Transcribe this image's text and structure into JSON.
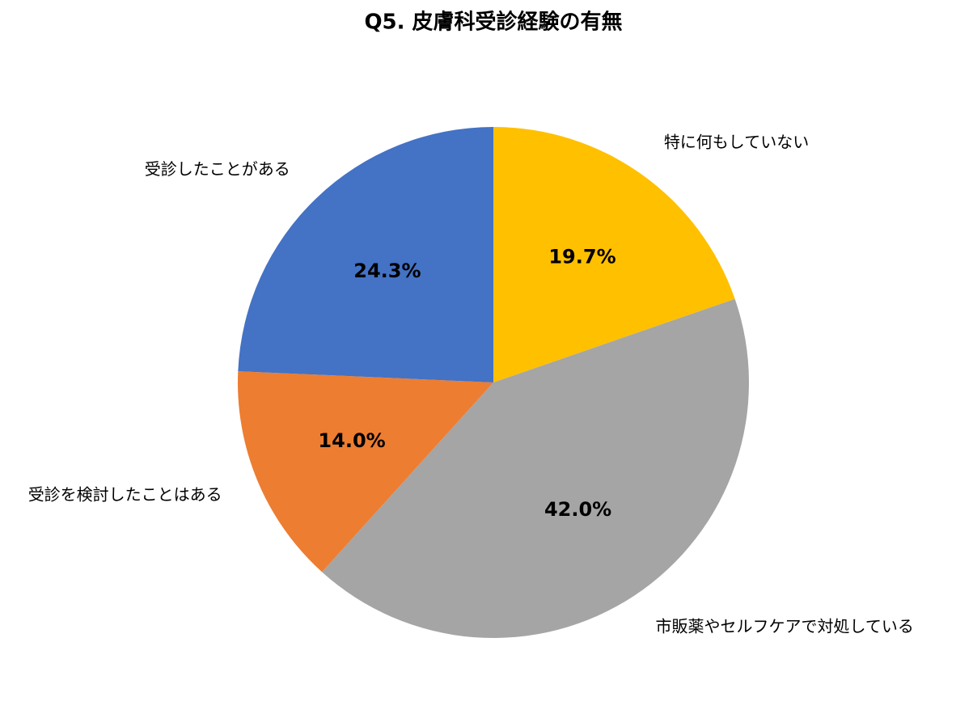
{
  "chart_data": {
    "type": "pie",
    "title": "Q5. 皮膚科受診経験の有無",
    "categories": [
      "特に何もしていない",
      "市販薬やセルフケアで対処している",
      "受診を検討したことはある",
      "受診したことがある"
    ],
    "values": [
      19.7,
      42.0,
      14.0,
      24.3
    ],
    "value_labels": [
      "19.7%",
      "42.0%",
      "14.0%",
      "24.3%"
    ],
    "colors": [
      "#ffc000",
      "#a5a5a5",
      "#ed7d31",
      "#4472c4"
    ]
  }
}
